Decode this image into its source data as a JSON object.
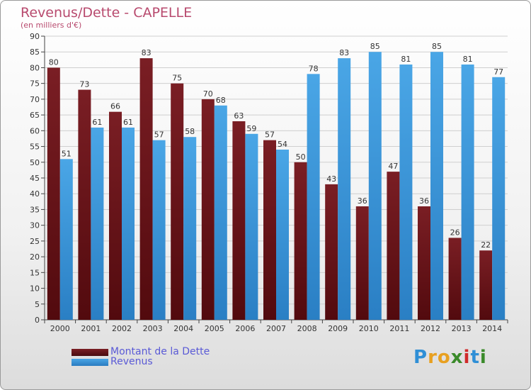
{
  "title": "Revenus/Dette - CAPELLE",
  "subtitle": "(en milliers d'€)",
  "logo": {
    "letters": [
      "P",
      "r",
      "o",
      "x",
      "i",
      "t",
      "i"
    ],
    "colors": [
      "#2f8fd6",
      "#e8a020",
      "#e8a020",
      "#3a8a2a",
      "#d02a2a",
      "#2f8fd6",
      "#3a8a2a"
    ]
  },
  "colors": {
    "dette": "#7a1e24",
    "revenus": "#4aa6e6",
    "axis": "#444444",
    "grid": "#cfcfcf"
  },
  "chart_data": {
    "type": "bar",
    "title": "Revenus/Dette - CAPELLE",
    "subtitle": "(en milliers d'€)",
    "categories": [
      "2000",
      "2001",
      "2002",
      "2003",
      "2004",
      "2005",
      "2006",
      "2007",
      "2008",
      "2009",
      "2010",
      "2011",
      "2012",
      "2013",
      "2014"
    ],
    "series": [
      {
        "name": "Montant de la Dette",
        "values": [
          80,
          73,
          66,
          83,
          75,
          70,
          63,
          57,
          50,
          43,
          36,
          47,
          36,
          26,
          22
        ]
      },
      {
        "name": "Revenus",
        "values": [
          51,
          61,
          61,
          57,
          58,
          68,
          59,
          54,
          78,
          83,
          85,
          81,
          85,
          81,
          77
        ]
      }
    ],
    "ylim": [
      0,
      90
    ],
    "yticks": [
      0,
      5,
      10,
      15,
      20,
      25,
      30,
      35,
      40,
      45,
      50,
      55,
      60,
      65,
      70,
      75,
      80,
      85,
      90
    ],
    "grid": true,
    "legend": "bottom-left"
  }
}
